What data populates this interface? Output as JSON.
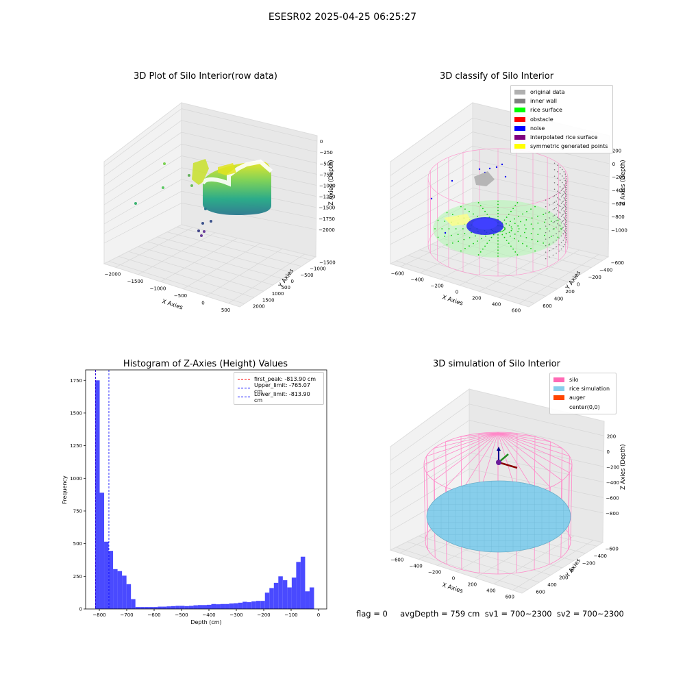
{
  "figure": {
    "suptitle": "ESESR02 2025-04-25 06:25:27",
    "footer": "flag = 0     avgDepth = 759 cm  sv1 = 700~2300  sv2 = 700~2300"
  },
  "colors": {
    "hist_bar": "#4a4aff",
    "pane": "#f2f2f2",
    "grid": "#dcdcdc",
    "silo_pink": "#ff88c8",
    "rice_blue": "#87ceeb",
    "noise_blue": "#0000ee",
    "rice_green": "#22ee22",
    "inner_wall_gray": "#888888"
  },
  "chart_data": [
    {
      "type": "scatter",
      "title": "3D Plot of Silo Interior(row data)",
      "xlabel": "X Axies",
      "ylabel": "Y Axies",
      "zlabel": "Z Axies (Depth)",
      "x_ticks": [
        "−2000",
        "−1500",
        "−1000",
        "−500",
        "0",
        "500"
      ],
      "y_ticks": [
        "2000",
        "1500",
        "1000",
        "500",
        "0",
        "−500",
        "−1000",
        "−1500"
      ],
      "z_ticks": [
        "0",
        "−250",
        "−500",
        "−750",
        "−1000",
        "−1250",
        "−1500",
        "−1750",
        "−2000"
      ],
      "colormap": "viridis",
      "grid": true
    },
    {
      "type": "scatter",
      "title": "3D classify of Silo Interior",
      "xlabel": "X Axies",
      "ylabel": "Y Axies",
      "zlabel": "Z Axies (Depth)",
      "x_ticks": [
        "−600",
        "−400",
        "−200",
        "0",
        "200",
        "400",
        "600"
      ],
      "y_ticks": [
        "600",
        "400",
        "200",
        "0",
        "−200",
        "−400",
        "−600"
      ],
      "z_ticks": [
        "200",
        "0",
        "−200",
        "−400",
        "−600",
        "−800",
        "−1000"
      ],
      "legend_position": "top-right",
      "legend": [
        {
          "label": "original data",
          "color": "#b0b0b0"
        },
        {
          "label": "inner wall",
          "color": "#808080"
        },
        {
          "label": "rice surface",
          "color": "#00ff00"
        },
        {
          "label": "obstacle",
          "color": "#ff0000"
        },
        {
          "label": "noise",
          "color": "#0000ff"
        },
        {
          "label": "interpolated rice surface",
          "color": "#800080"
        },
        {
          "label": "symmetric generated points",
          "color": "#ffff00"
        }
      ],
      "grid": true
    },
    {
      "type": "bar",
      "title": "Histogram of Z-Axies (Height) Values",
      "xlabel": "Depth (cm)",
      "ylabel": "Frequency",
      "xlim": [
        -850,
        30
      ],
      "ylim": [
        0,
        1830
      ],
      "x_ticks": [
        -800,
        -700,
        -600,
        -500,
        -400,
        -300,
        -200,
        -100,
        0
      ],
      "y_ticks": [
        0,
        250,
        500,
        750,
        1000,
        1250,
        1500,
        1750
      ],
      "bin_start": -815,
      "bin_width": 16.3,
      "values": [
        1750,
        890,
        515,
        445,
        305,
        290,
        255,
        190,
        75,
        15,
        15,
        15,
        15,
        15,
        18,
        18,
        20,
        22,
        24,
        24,
        22,
        24,
        28,
        30,
        30,
        32,
        38,
        36,
        38,
        38,
        42,
        44,
        48,
        55,
        52,
        58,
        62,
        62,
        125,
        160,
        200,
        250,
        220,
        165,
        240,
        360,
        400,
        135,
        165
      ],
      "vlines": [
        {
          "label": "first_peak: -813.90 cm",
          "x": -813.9,
          "color": "#ff0000"
        },
        {
          "label": "Upper_limit: -765.07 cm",
          "x": -765.07,
          "color": "#0000ff"
        },
        {
          "label": "Lower_limit: -813.90 cm",
          "x": -813.9,
          "color": "#0000ff"
        }
      ],
      "legend_position": "top-right"
    },
    {
      "type": "scatter",
      "title": "3D simulation of Silo Interior",
      "xlabel": "X Axies",
      "ylabel": "Y Axies",
      "zlabel": "Z Axies (Depth)",
      "x_ticks": [
        "−600",
        "−400",
        "−200",
        "0",
        "200",
        "400",
        "600"
      ],
      "y_ticks": [
        "600",
        "400",
        "200",
        "0",
        "−200",
        "−400",
        "−600"
      ],
      "z_ticks": [
        "200",
        "0",
        "−200",
        "−400",
        "−600",
        "−800"
      ],
      "legend_position": "top-right",
      "legend": [
        {
          "label": "silo",
          "color": "#ff69b4"
        },
        {
          "label": "rice simulation",
          "color": "#87ceeb"
        },
        {
          "label": "auger",
          "color": "#ff4500"
        },
        {
          "label": "center(0,0)",
          "color": ""
        }
      ],
      "grid": true
    }
  ]
}
